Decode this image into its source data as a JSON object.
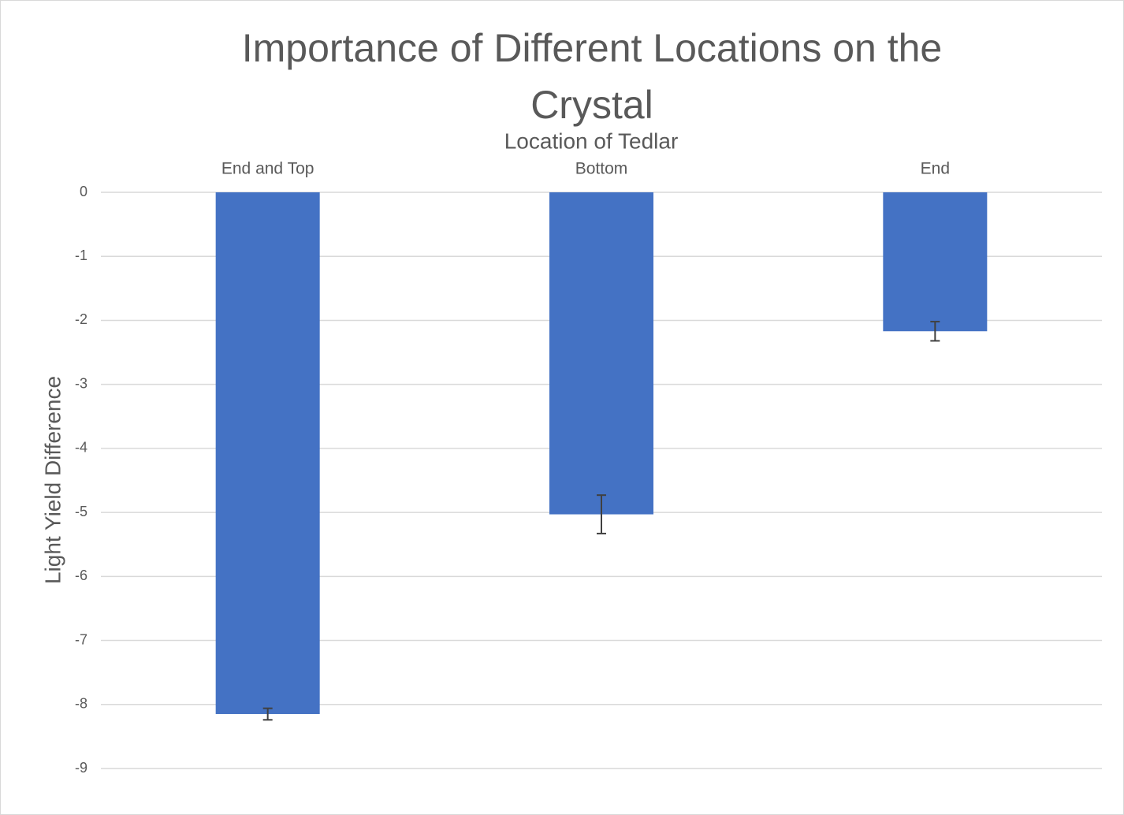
{
  "chart_data": {
    "type": "bar",
    "title": "Importance of Different Locations on the Crystal",
    "x_label": "Location of Tedlar",
    "y_label": "Light Yield Difference",
    "categories": [
      "End and Top",
      "Bottom",
      "End"
    ],
    "values": [
      -8.15,
      -5.03,
      -2.17
    ],
    "errors": [
      0.09,
      0.3,
      0.15
    ],
    "color": "#4472c4",
    "ylim": [
      -9,
      0
    ],
    "yticks": [
      0,
      -1,
      -2,
      -3,
      -4,
      -5,
      -6,
      -7,
      -8,
      -9
    ],
    "grid": true
  }
}
